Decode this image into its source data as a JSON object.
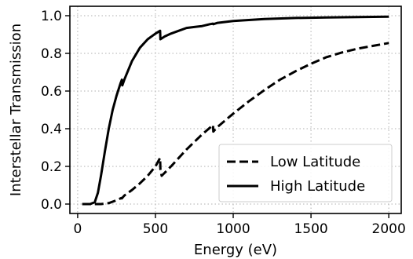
{
  "chart_data": {
    "type": "line",
    "xlabel": "Energy (eV)",
    "ylabel": "Interstellar Transmission",
    "xlim": [
      -50,
      2080
    ],
    "ylim": [
      -0.05,
      1.05
    ],
    "x_ticks": [
      0,
      500,
      1000,
      1500,
      2000
    ],
    "y_ticks": [
      0.0,
      0.2,
      0.4,
      0.6,
      0.8,
      1.0
    ],
    "x_tick_labels": [
      "0",
      "500",
      "1000",
      "1500",
      "2000"
    ],
    "y_tick_labels": [
      "0.0",
      "0.2",
      "0.4",
      "0.6",
      "0.8",
      "1.0"
    ],
    "grid": true,
    "legend_position": "lower-right",
    "series": [
      {
        "name": "Low Latitude",
        "style": "dashed",
        "x": [
          30,
          100,
          150,
          200,
          250,
          280,
          284,
          300,
          350,
          400,
          450,
          500,
          530,
          532,
          540,
          600,
          650,
          700,
          750,
          800,
          850,
          870,
          872,
          900,
          1000,
          1100,
          1200,
          1300,
          1400,
          1500,
          1600,
          1700,
          1800,
          1900,
          2000
        ],
        "y": [
          0.0,
          0.0,
          0.0,
          0.005,
          0.02,
          0.032,
          0.03,
          0.045,
          0.075,
          0.11,
          0.15,
          0.2,
          0.245,
          0.185,
          0.15,
          0.2,
          0.245,
          0.29,
          0.33,
          0.37,
          0.405,
          0.42,
          0.385,
          0.41,
          0.48,
          0.545,
          0.605,
          0.66,
          0.705,
          0.745,
          0.78,
          0.805,
          0.825,
          0.84,
          0.855
        ]
      },
      {
        "name": "High Latitude",
        "style": "solid",
        "x": [
          30,
          80,
          110,
          130,
          150,
          175,
          200,
          225,
          250,
          275,
          284,
          287,
          300,
          350,
          400,
          450,
          500,
          530,
          532,
          560,
          600,
          650,
          700,
          750,
          800,
          850,
          870,
          872,
          900,
          1000,
          1200,
          1400,
          1600,
          1800,
          2000
        ],
        "y": [
          0.0,
          0.0,
          0.01,
          0.06,
          0.15,
          0.28,
          0.4,
          0.5,
          0.575,
          0.64,
          0.66,
          0.63,
          0.66,
          0.76,
          0.83,
          0.875,
          0.905,
          0.92,
          0.875,
          0.89,
          0.905,
          0.92,
          0.935,
          0.94,
          0.945,
          0.955,
          0.958,
          0.955,
          0.962,
          0.972,
          0.982,
          0.988,
          0.991,
          0.993,
          0.995
        ]
      }
    ]
  }
}
